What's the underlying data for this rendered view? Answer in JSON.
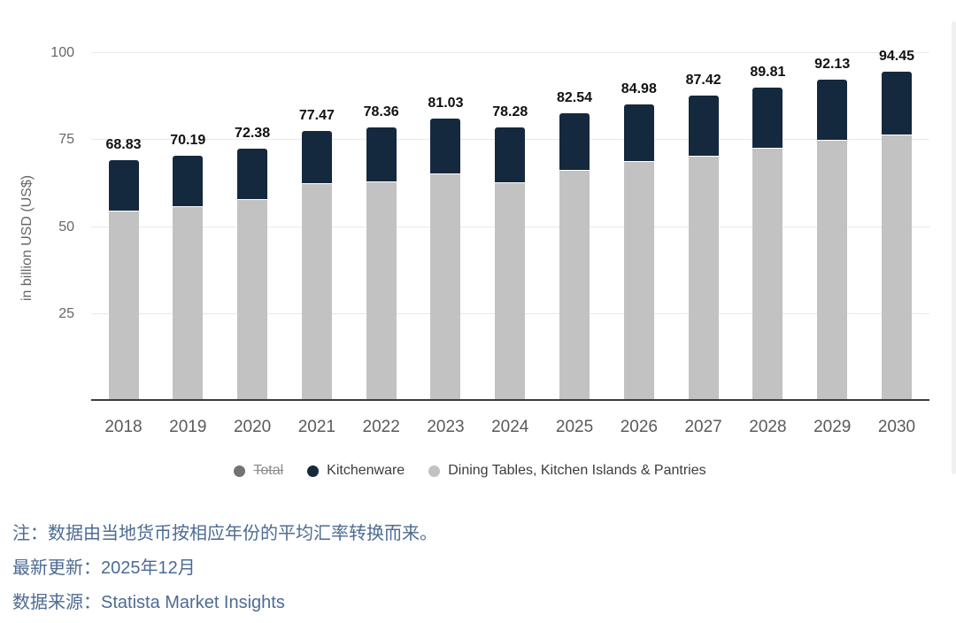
{
  "chart_data": {
    "type": "bar",
    "stacked": true,
    "title": "",
    "categories": [
      "2018",
      "2019",
      "2020",
      "2021",
      "2022",
      "2023",
      "2024",
      "2025",
      "2026",
      "2027",
      "2028",
      "2029",
      "2030"
    ],
    "totals": [
      68.83,
      70.19,
      72.38,
      77.47,
      78.36,
      81.03,
      78.28,
      82.54,
      84.98,
      87.42,
      89.81,
      92.13,
      94.45
    ],
    "series": [
      {
        "name": "Dining Tables, Kitchen Islands & Pantries",
        "color": "#c2c2c2",
        "values": [
          54.1,
          55.4,
          57.5,
          62.0,
          62.6,
          64.8,
          62.4,
          66.0,
          68.4,
          70.0,
          72.2,
          74.5,
          76.1
        ]
      },
      {
        "name": "Kitchenware",
        "color": "#15293e",
        "values": [
          14.73,
          14.79,
          14.88,
          15.47,
          15.76,
          16.23,
          15.88,
          16.54,
          16.58,
          17.42,
          17.61,
          17.63,
          18.35
        ]
      }
    ],
    "ylabel": "in billion USD (US$)",
    "yticks": [
      25,
      50,
      75,
      100
    ],
    "ylim": [
      0,
      100
    ],
    "grid": true,
    "value_labels": "totals above bars",
    "legend_position": "bottom",
    "legend": [
      {
        "label": "Total",
        "color": "#737373",
        "disabled": true
      },
      {
        "label": "Kitchenware",
        "color": "#15293e",
        "disabled": false
      },
      {
        "label": "Dining Tables, Kitchen Islands & Pantries",
        "color": "#c2c2c2",
        "disabled": false
      }
    ]
  },
  "notes": {
    "line1": "注：数据由当地货币按相应年份的平均汇率转换而来。",
    "line2": "最新更新：2025年12月",
    "line3": "数据来源：Statista Market Insights"
  },
  "colors": {
    "bar_navy": "#15293e",
    "bar_gray": "#c2c2c2",
    "gridline": "#e9e9e9",
    "axis_line": "#3d3d3d",
    "axis_text": "#666666",
    "year_text": "#5a5a5a",
    "value_label_text": "#111111",
    "note_text": "#4d6b93"
  }
}
